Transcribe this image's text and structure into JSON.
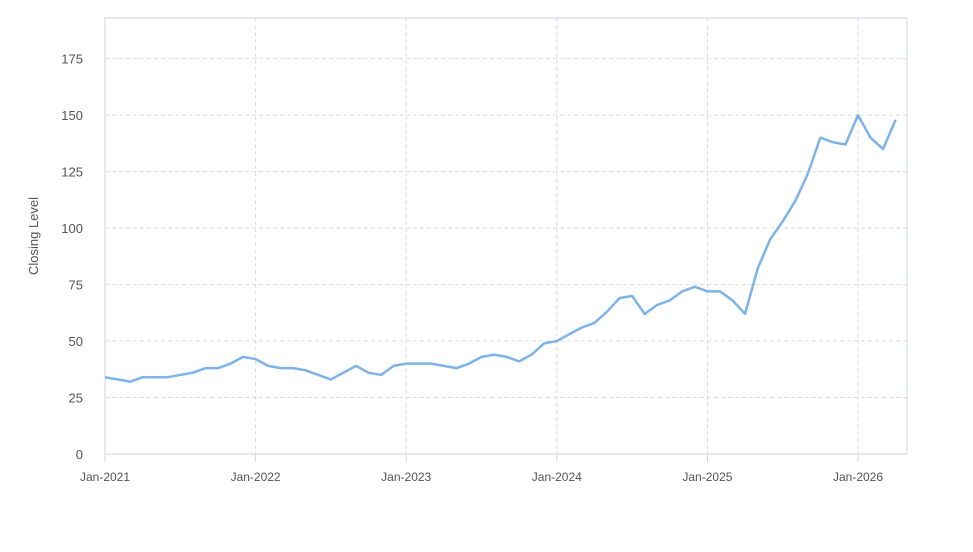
{
  "chart_data": {
    "type": "line",
    "y_label": "Closing Level",
    "categories": [
      "Jan-2021",
      null,
      null,
      null,
      null,
      null,
      null,
      null,
      null,
      null,
      null,
      null,
      "Jan-2022",
      null,
      null,
      null,
      null,
      null,
      null,
      null,
      null,
      null,
      null,
      null,
      "Jan-2023",
      null,
      null,
      null,
      null,
      null,
      null,
      null,
      null,
      null,
      null,
      null,
      "Jan-2024",
      null,
      null,
      null,
      null,
      null,
      null,
      null,
      null,
      null,
      null,
      null,
      "Jan-2025",
      null,
      null,
      null,
      null,
      null,
      null,
      null,
      null,
      null,
      null,
      null,
      "Jan-2026",
      null,
      null,
      null
    ],
    "series": [
      {
        "name": "Closing Level",
        "color": "#7db3e8",
        "values": [
          34,
          33,
          32,
          34,
          34,
          34,
          35,
          36,
          38,
          38,
          40,
          43,
          42,
          39,
          38,
          38,
          37,
          35,
          33,
          36,
          39,
          36,
          35,
          39,
          40,
          40,
          40,
          39,
          38,
          40,
          43,
          44,
          43,
          41,
          44,
          49,
          50,
          53,
          56,
          58,
          63,
          69,
          70,
          62,
          66,
          68,
          72,
          74,
          72,
          72,
          68,
          62,
          82,
          95,
          103,
          112,
          124,
          140,
          138,
          137,
          150,
          140,
          135,
          148
        ]
      }
    ],
    "ylim": [
      0,
      193
    ],
    "yticks": [
      0,
      25,
      50,
      75,
      100,
      125,
      150,
      175
    ],
    "grid": true
  }
}
